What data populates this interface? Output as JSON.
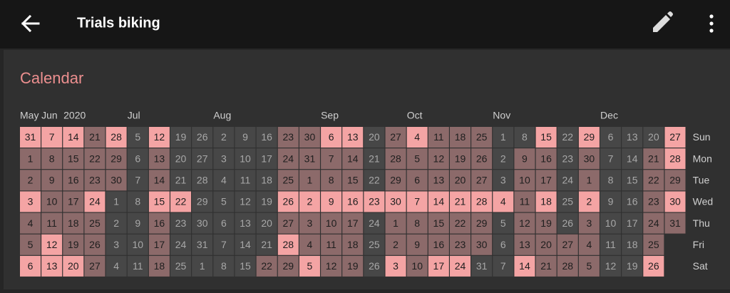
{
  "header": {
    "title": "Trials biking"
  },
  "card": {
    "title": "Calendar",
    "months": [
      "May",
      "Jun",
      "Jul",
      "Aug",
      "Sep",
      "Oct",
      "Nov",
      "Dec"
    ],
    "year": "2020",
    "weekdays": [
      "Sun",
      "Mon",
      "Tue",
      "Wed",
      "Thu",
      "Fri",
      "Sat"
    ],
    "level_colors": [
      "#474747",
      "#8c6a6a",
      "#f4a4a4"
    ],
    "weeks": [
      {
        "days": [
          31,
          1,
          2,
          3,
          4,
          5,
          6
        ],
        "levels": [
          2,
          1,
          1,
          2,
          1,
          1,
          2
        ]
      },
      {
        "days": [
          7,
          8,
          9,
          10,
          11,
          12,
          13
        ],
        "levels": [
          2,
          1,
          1,
          1,
          1,
          2,
          2
        ]
      },
      {
        "days": [
          14,
          15,
          16,
          17,
          18,
          19,
          20
        ],
        "levels": [
          2,
          1,
          1,
          1,
          1,
          1,
          2
        ]
      },
      {
        "days": [
          21,
          22,
          23,
          24,
          25,
          26,
          27
        ],
        "levels": [
          1,
          1,
          1,
          2,
          1,
          1,
          1
        ]
      },
      {
        "days": [
          28,
          29,
          30,
          1,
          2,
          3,
          4
        ],
        "levels": [
          2,
          1,
          1,
          0,
          0,
          0,
          0
        ]
      },
      {
        "days": [
          5,
          6,
          7,
          8,
          9,
          10,
          11
        ],
        "levels": [
          0,
          0,
          0,
          0,
          0,
          0,
          0
        ]
      },
      {
        "days": [
          12,
          13,
          14,
          15,
          16,
          17,
          18
        ],
        "levels": [
          2,
          1,
          1,
          2,
          1,
          1,
          1
        ]
      },
      {
        "days": [
          19,
          20,
          21,
          22,
          23,
          24,
          25
        ],
        "levels": [
          0,
          0,
          0,
          2,
          0,
          0,
          0
        ]
      },
      {
        "days": [
          26,
          27,
          28,
          29,
          30,
          31,
          1
        ],
        "levels": [
          0,
          0,
          0,
          0,
          0,
          0,
          0
        ]
      },
      {
        "days": [
          2,
          3,
          4,
          5,
          6,
          7,
          8
        ],
        "levels": [
          0,
          0,
          0,
          0,
          0,
          0,
          0
        ]
      },
      {
        "days": [
          9,
          10,
          11,
          12,
          13,
          14,
          15
        ],
        "levels": [
          0,
          0,
          0,
          0,
          0,
          0,
          0
        ]
      },
      {
        "days": [
          16,
          17,
          18,
          19,
          20,
          21,
          22
        ],
        "levels": [
          0,
          0,
          0,
          0,
          0,
          0,
          1
        ]
      },
      {
        "days": [
          23,
          24,
          25,
          26,
          27,
          28,
          29
        ],
        "levels": [
          1,
          1,
          1,
          2,
          1,
          2,
          1
        ]
      },
      {
        "days": [
          30,
          31,
          1,
          2,
          3,
          4,
          5
        ],
        "levels": [
          1,
          1,
          1,
          2,
          1,
          1,
          2
        ]
      },
      {
        "days": [
          6,
          7,
          8,
          9,
          10,
          11,
          12
        ],
        "levels": [
          2,
          1,
          1,
          2,
          1,
          1,
          1
        ]
      },
      {
        "days": [
          13,
          14,
          15,
          16,
          17,
          18,
          19
        ],
        "levels": [
          2,
          1,
          1,
          2,
          1,
          1,
          1
        ]
      },
      {
        "days": [
          20,
          21,
          22,
          23,
          24,
          25,
          26
        ],
        "levels": [
          0,
          0,
          0,
          2,
          0,
          0,
          0
        ]
      },
      {
        "days": [
          27,
          28,
          29,
          30,
          1,
          2,
          3
        ],
        "levels": [
          1,
          1,
          1,
          2,
          1,
          1,
          2
        ]
      },
      {
        "days": [
          4,
          5,
          6,
          7,
          8,
          9,
          10
        ],
        "levels": [
          2,
          1,
          1,
          2,
          1,
          1,
          1
        ]
      },
      {
        "days": [
          11,
          12,
          13,
          14,
          15,
          16,
          17
        ],
        "levels": [
          1,
          1,
          1,
          2,
          1,
          1,
          2
        ]
      },
      {
        "days": [
          18,
          19,
          20,
          21,
          22,
          23,
          24
        ],
        "levels": [
          1,
          1,
          1,
          2,
          1,
          1,
          2
        ]
      },
      {
        "days": [
          25,
          26,
          27,
          28,
          29,
          30,
          31
        ],
        "levels": [
          1,
          1,
          1,
          2,
          1,
          1,
          0
        ]
      },
      {
        "days": [
          1,
          2,
          3,
          4,
          5,
          6,
          7
        ],
        "levels": [
          0,
          0,
          0,
          2,
          0,
          0,
          0
        ]
      },
      {
        "days": [
          8,
          9,
          10,
          11,
          12,
          13,
          14
        ],
        "levels": [
          0,
          1,
          1,
          1,
          1,
          1,
          2
        ]
      },
      {
        "days": [
          15,
          16,
          17,
          18,
          19,
          20,
          21
        ],
        "levels": [
          2,
          1,
          1,
          2,
          1,
          1,
          1
        ]
      },
      {
        "days": [
          22,
          23,
          24,
          25,
          26,
          27,
          28
        ],
        "levels": [
          0,
          0,
          0,
          0,
          0,
          1,
          1
        ]
      },
      {
        "days": [
          29,
          30,
          1,
          2,
          3,
          4,
          5
        ],
        "levels": [
          2,
          1,
          1,
          2,
          1,
          1,
          1
        ]
      },
      {
        "days": [
          6,
          7,
          8,
          9,
          10,
          11,
          12
        ],
        "levels": [
          0,
          0,
          0,
          0,
          0,
          0,
          0
        ]
      },
      {
        "days": [
          13,
          14,
          15,
          16,
          17,
          18,
          19
        ],
        "levels": [
          0,
          0,
          0,
          0,
          0,
          0,
          0
        ]
      },
      {
        "days": [
          20,
          21,
          22,
          23,
          24,
          25,
          26
        ],
        "levels": [
          0,
          1,
          1,
          1,
          1,
          1,
          2
        ]
      },
      {
        "days": [
          27,
          28,
          29,
          30,
          31
        ],
        "levels": [
          2,
          2,
          1,
          2,
          1
        ]
      }
    ]
  }
}
